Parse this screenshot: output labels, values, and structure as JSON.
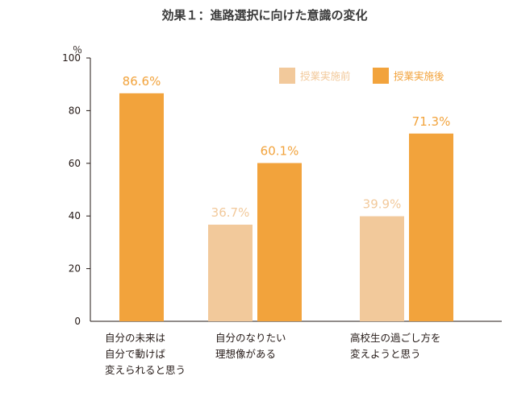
{
  "chart_data": {
    "type": "bar",
    "title": "効果１：進路選択に向けた意識の変化",
    "ylabel": "％",
    "ylim": [
      0,
      100
    ],
    "yticks": [
      0,
      20,
      40,
      60,
      80,
      100
    ],
    "grid": false,
    "legend_position": "top-right",
    "categories": [
      [
        "自分の未来は",
        "自分で動けば",
        "変えられると思う"
      ],
      [
        "自分のなりたい",
        "理想像がある"
      ],
      [
        "高校生の過ごし方を",
        "変えようと思う"
      ]
    ],
    "series": [
      {
        "name": "授業実施前",
        "color": "#f2c99b",
        "values": [
          null,
          36.7,
          39.9
        ],
        "labels": [
          "",
          "36.7%",
          "39.9%"
        ]
      },
      {
        "name": "授業実施後",
        "color": "#f2a33c",
        "values": [
          86.6,
          60.1,
          71.3
        ],
        "labels": [
          "86.6%",
          "60.1%",
          "71.3%"
        ]
      }
    ]
  }
}
